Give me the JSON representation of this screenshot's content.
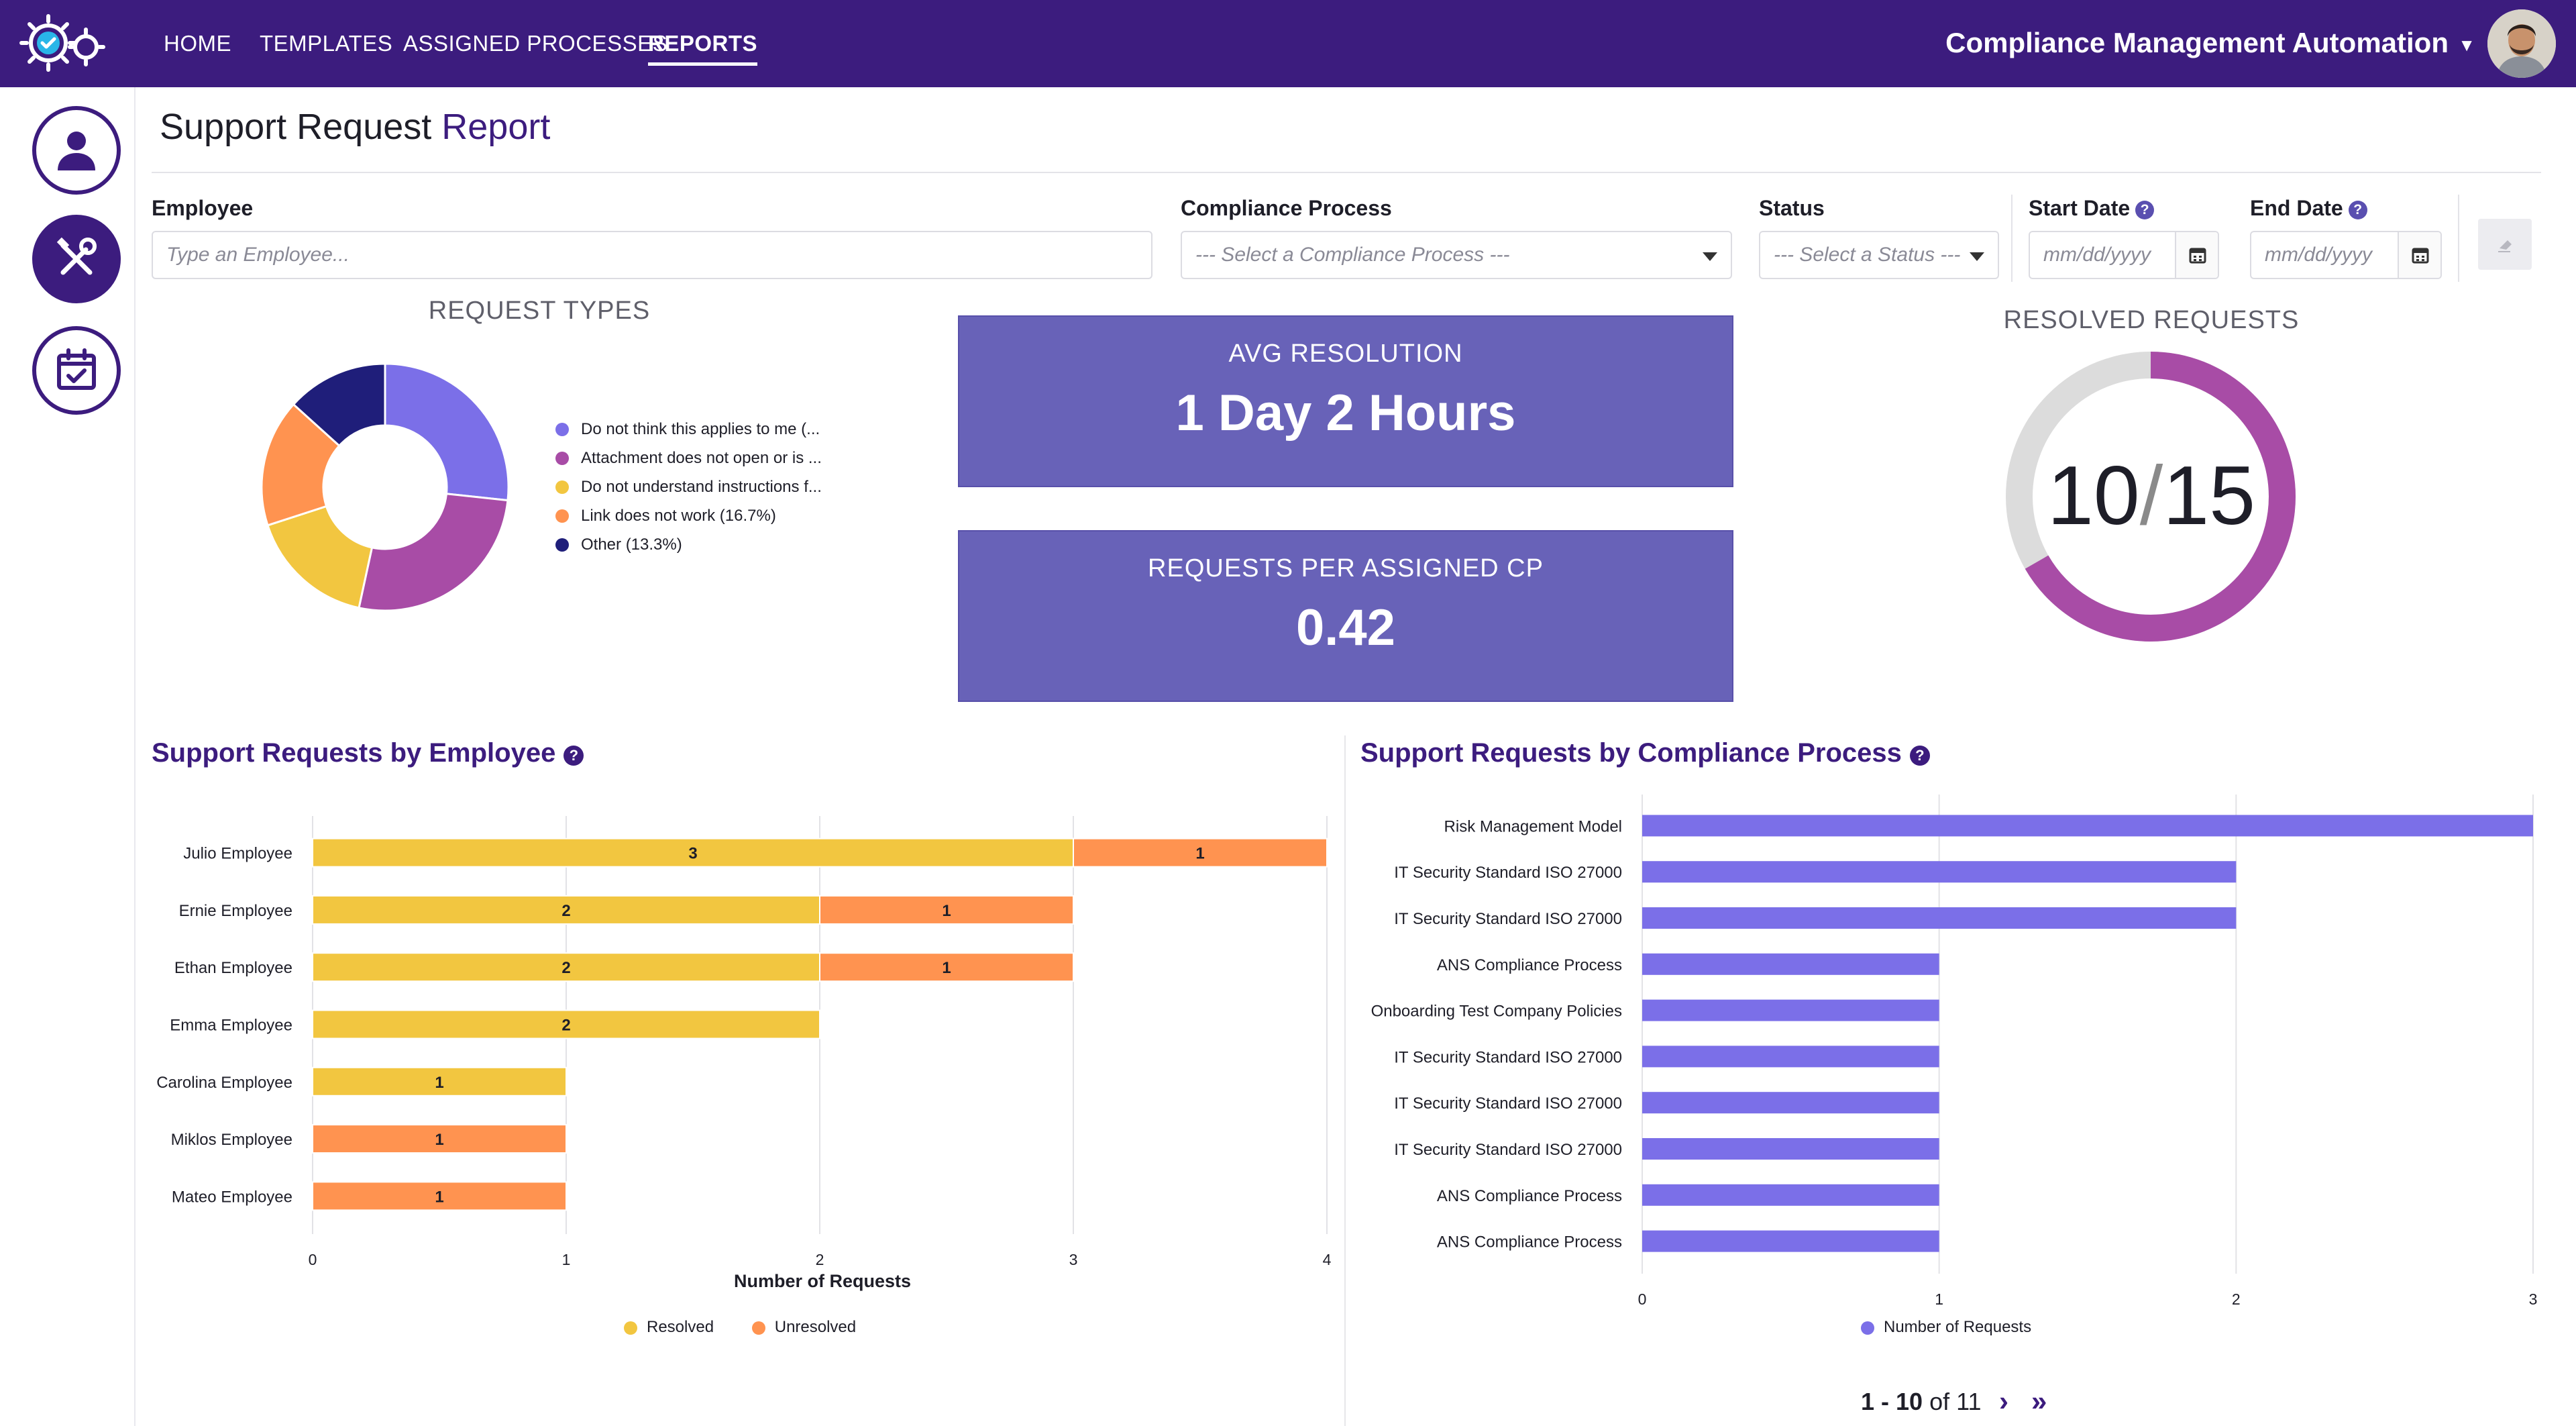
{
  "nav": {
    "items": [
      "HOME",
      "TEMPLATES",
      "ASSIGNED PROCESSES",
      "REPORTS"
    ],
    "active": "REPORTS",
    "app_title": "Compliance Management Automation"
  },
  "page": {
    "title_main": "Support Request",
    "title_accent": "Report"
  },
  "filters": {
    "employee": {
      "label": "Employee",
      "placeholder": "Type an Employee..."
    },
    "process": {
      "label": "Compliance Process",
      "placeholder": "--- Select a Compliance Process ---"
    },
    "status": {
      "label": "Status",
      "placeholder": "--- Select a Status ---"
    },
    "start_date": {
      "label": "Start Date",
      "placeholder": "mm/dd/yyyy"
    },
    "end_date": {
      "label": "End Date",
      "placeholder": "mm/dd/yyyy"
    }
  },
  "request_types": {
    "title": "REQUEST TYPES",
    "chart_data": {
      "type": "pie",
      "donut": true,
      "slices": [
        {
          "label": "Do not think this applies to me (...",
          "value": 26.7,
          "color": "#7b6fe8"
        },
        {
          "label": "Attachment does not open or is ...",
          "value": 26.7,
          "color": "#a84ca6"
        },
        {
          "label": "Do not understand instructions f...",
          "value": 16.6,
          "color": "#f2c640"
        },
        {
          "label": "Link does not work (16.7%)",
          "value": 16.7,
          "color": "#ff9350"
        },
        {
          "label": "Other (13.3%)",
          "value": 13.3,
          "color": "#1f1e7a"
        }
      ]
    }
  },
  "kpis": {
    "avg_resolution": {
      "label": "AVG RESOLUTION",
      "value": "1 Day 2 Hours"
    },
    "requests_per_cp": {
      "label": "REQUESTS PER ASSIGNED CP",
      "value": "0.42"
    }
  },
  "resolved": {
    "title": "RESOLVED REQUESTS",
    "resolved": "10",
    "total": "15",
    "fraction": 0.6667,
    "color_resolved": "#a84ca6",
    "color_track": "#dcdcdc"
  },
  "by_employee": {
    "heading": "Support Requests by Employee",
    "chart_data": {
      "type": "bar",
      "orientation": "horizontal",
      "stacked": true,
      "categories": [
        "Julio Employee",
        "Ernie Employee",
        "Ethan Employee",
        "Emma Employee",
        "Carolina Employee",
        "Miklos Employee",
        "Mateo Employee"
      ],
      "series": [
        {
          "name": "Resolved",
          "values": [
            3,
            2,
            2,
            2,
            1,
            0,
            0
          ],
          "color": "#f2c640"
        },
        {
          "name": "Unresolved",
          "values": [
            1,
            1,
            1,
            0,
            0,
            1,
            1
          ],
          "color": "#ff9350"
        }
      ],
      "xlabel": "Number of Requests",
      "xlim": [
        0,
        4
      ],
      "xticks": [
        "0",
        "1",
        "2",
        "3",
        "4"
      ],
      "legend": "bottom"
    }
  },
  "by_process": {
    "heading": "Support Requests by Compliance Process",
    "chart_data": {
      "type": "bar",
      "orientation": "horizontal",
      "categories": [
        "Risk Management Model",
        "IT Security Standard ISO 27000",
        "IT Security Standard ISO 27000",
        "ANS Compliance Process",
        "Onboarding Test Company Policies",
        "IT Security Standard ISO 27000",
        "IT Security Standard ISO 27000",
        "IT Security Standard ISO 27000",
        "ANS Compliance Process",
        "ANS Compliance Process"
      ],
      "series": [
        {
          "name": "Number of Requests",
          "values": [
            3,
            2,
            2,
            1,
            1,
            1,
            1,
            1,
            1,
            1
          ],
          "color": "#7b6fe8"
        }
      ],
      "xlim": [
        0,
        3
      ],
      "xticks": [
        "0",
        "1",
        "2",
        "3"
      ],
      "legend": "bottom"
    }
  },
  "pagination": {
    "range": "1 - 10",
    "of_text": "of 11"
  }
}
